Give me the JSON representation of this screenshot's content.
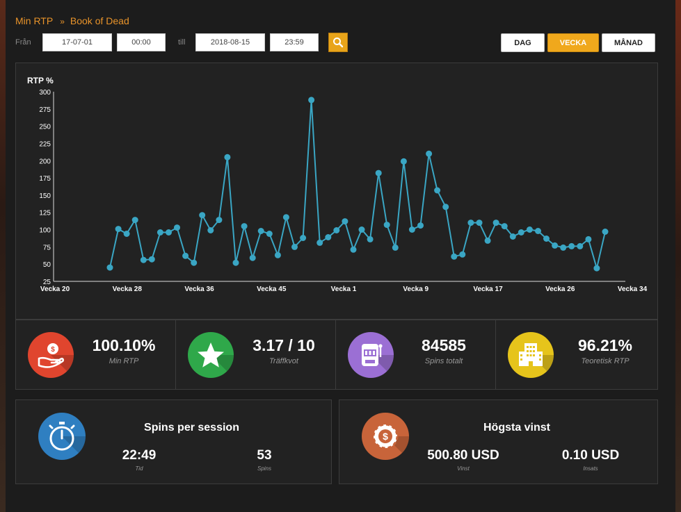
{
  "breadcrumb": {
    "home": "Min RTP",
    "separator": "»",
    "current": "Book of Dead"
  },
  "filters": {
    "from_label": "Från",
    "from_date": "17-07-01",
    "from_time": "00:00",
    "to_label": "till",
    "to_date": "2018-08-15",
    "to_time": "23:59"
  },
  "period_buttons": [
    {
      "label": "DAG",
      "active": false
    },
    {
      "label": "VECKA",
      "active": true
    },
    {
      "label": "MÅNAD",
      "active": false
    }
  ],
  "chart_data": {
    "type": "line",
    "ylabel": "RTP %",
    "ylim": [
      25,
      300
    ],
    "yticks": [
      25,
      50,
      75,
      100,
      125,
      150,
      175,
      200,
      225,
      250,
      275,
      300
    ],
    "xtick_labels": [
      "Vecka 20",
      "Vecka 28",
      "Vecka 36",
      "Vecka 45",
      "Vecka 1",
      "Vecka 9",
      "Vecka 17",
      "Vecka 26",
      "Vecka 34"
    ],
    "grid": false,
    "color": "#3aa6c4",
    "values": [
      45,
      101,
      94,
      114,
      56,
      57,
      96,
      96,
      103,
      62,
      52,
      121,
      99,
      114,
      205,
      52,
      105,
      59,
      98,
      94,
      63,
      118,
      75,
      88,
      288,
      81,
      89,
      99,
      112,
      71,
      100,
      86,
      182,
      107,
      74,
      199,
      100,
      106,
      210,
      157,
      133,
      61,
      64,
      110,
      110,
      84,
      110,
      105,
      90,
      96,
      100,
      98,
      87,
      77,
      74,
      76,
      76,
      86,
      44,
      97
    ]
  },
  "stats": [
    {
      "value": "100.10%",
      "label": "Min RTP",
      "icon": "hand-money-icon",
      "color": "#e0452e"
    },
    {
      "value": "3.17 / 10",
      "label": "Träffkvot",
      "icon": "star-icon",
      "color": "#2fa84a"
    },
    {
      "value": "84585",
      "label": "Spins totalt",
      "icon": "slot-machine-icon",
      "color": "#9b6fd4"
    },
    {
      "value": "96.21%",
      "label": "Teoretisk RTP",
      "icon": "building-icon",
      "color": "#e6c41b"
    }
  ],
  "sessions": {
    "title": "Spins per session",
    "icon": "stopwatch-icon",
    "time_value": "22:49",
    "time_label": "Tid",
    "spins_value": "53",
    "spins_label": "Spins"
  },
  "top_win": {
    "title": "Högsta vinst",
    "icon": "casino-chip-icon",
    "win_value": "500.80 USD",
    "win_label": "Vinst",
    "bet_value": "0.10 USD",
    "bet_label": "Insats"
  }
}
